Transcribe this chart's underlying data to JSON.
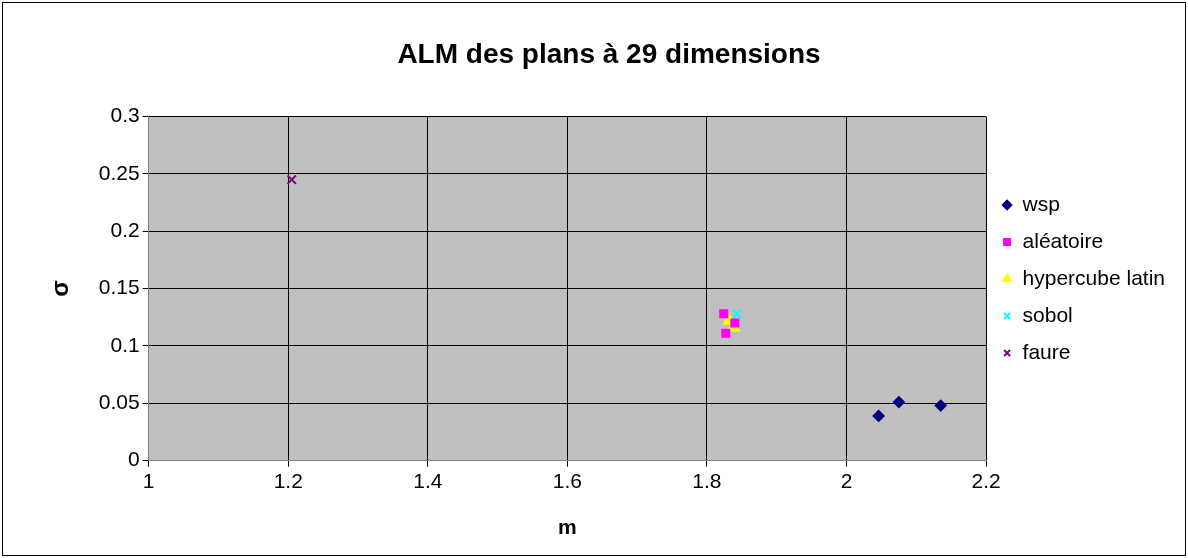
{
  "chart_data": {
    "type": "scatter",
    "title": "ALM des plans à 29 dimensions",
    "xlabel": "m",
    "ylabel": "σ",
    "xlim": [
      1,
      2.2
    ],
    "xticks": [
      1,
      1.2,
      1.4,
      1.6,
      1.8,
      2,
      2.2
    ],
    "ylim": [
      0,
      0.3
    ],
    "yticks": [
      0,
      0.05,
      0.1,
      0.15,
      0.2,
      0.25,
      0.3
    ],
    "grid": true,
    "legend": "right",
    "series": [
      {
        "name": "wsp",
        "color": "#000080",
        "marker": "diamond",
        "x": [
          2.046,
          2.075,
          2.135
        ],
        "values": [
          0.039,
          0.051,
          0.048
        ]
      },
      {
        "name": "aléatoire",
        "color": "#ff00ff",
        "marker": "square",
        "x": [
          1.824,
          1.827,
          1.84
        ],
        "values": [
          0.128,
          0.111,
          0.12
        ]
      },
      {
        "name": "hypercube latin",
        "color": "#ffff00",
        "marker": "triangle",
        "x": [
          1.832,
          1.838
        ],
        "values": [
          0.122,
          0.116
        ]
      },
      {
        "name": "sobol",
        "color": "#00ffff",
        "marker": "cross",
        "x": [
          1.843
        ],
        "values": [
          0.128
        ]
      },
      {
        "name": "faure",
        "color": "#800080",
        "marker": "cross",
        "x": [
          1.205
        ],
        "values": [
          0.245
        ]
      }
    ]
  }
}
